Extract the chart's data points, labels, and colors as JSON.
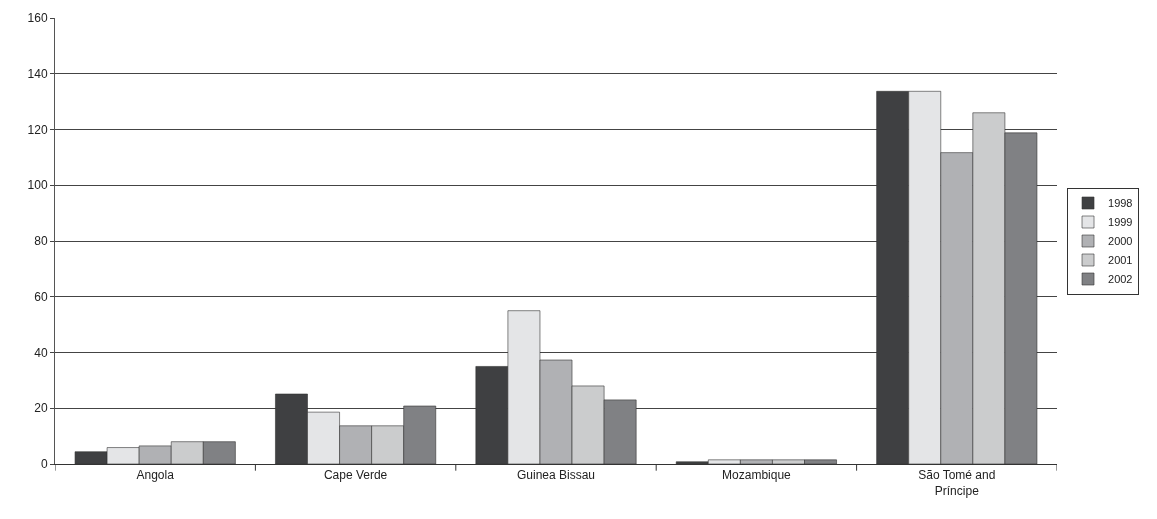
{
  "chart_data": {
    "type": "bar",
    "categories": [
      "Angola",
      "Cape Verde",
      "Guinea Bissau",
      "Mozambique",
      "São Tomé and\nPríncipe"
    ],
    "series": [
      {
        "name": "1998",
        "color": "#3f4042",
        "values": [
          4.4,
          25.1,
          35.0,
          0.8,
          133.7
        ]
      },
      {
        "name": "1999",
        "color": "#e4e5e7",
        "values": [
          5.9,
          18.6,
          55.0,
          1.5,
          133.7
        ]
      },
      {
        "name": "2000",
        "color": "#b0b1b4",
        "values": [
          6.5,
          13.7,
          37.3,
          1.5,
          111.7
        ]
      },
      {
        "name": "2001",
        "color": "#cbcccd",
        "values": [
          8.0,
          13.7,
          28.0,
          1.5,
          126.0
        ]
      },
      {
        "name": "2002",
        "color": "#808184",
        "values": [
          8.0,
          20.8,
          23.0,
          1.5,
          118.8
        ]
      }
    ],
    "ylim": [
      0,
      160
    ],
    "yticks": [
      0,
      20,
      40,
      60,
      80,
      100,
      120,
      140,
      160
    ],
    "grid": "y",
    "legend": "right"
  }
}
